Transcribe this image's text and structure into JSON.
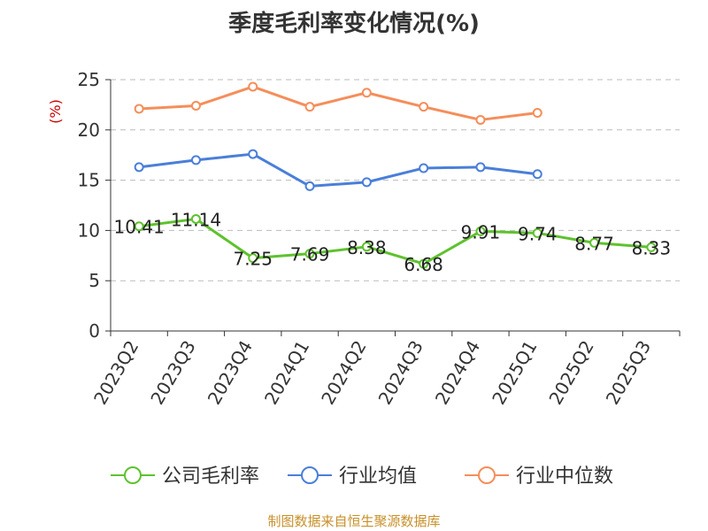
{
  "title": "季度毛利率变化情况(%)",
  "footer": "制图数据来自恒生聚源数据库",
  "colors": {
    "title": "#333333",
    "axis": "#333333",
    "grid": "#bbbbbb",
    "unit": "#cc0000",
    "footer": "#c8902a"
  },
  "chart_data": {
    "type": "line",
    "unit_label": "(%)",
    "categories": [
      "2023Q2",
      "2023Q3",
      "2023Q4",
      "2024Q1",
      "2024Q2",
      "2024Q3",
      "2024Q4",
      "2025Q1",
      "2025Q2",
      "2025Q3"
    ],
    "ylim": [
      0,
      25
    ],
    "yticks": [
      0,
      5,
      10,
      15,
      20,
      25
    ],
    "grid": true,
    "legend_position": "bottom",
    "series": [
      {
        "name": "公司毛利率",
        "color": "#5ec22e",
        "show_labels": true,
        "values": [
          10.41,
          11.14,
          7.25,
          7.69,
          8.38,
          6.68,
          9.91,
          9.74,
          8.77,
          8.33
        ]
      },
      {
        "name": "行业均值",
        "color": "#4a7fd9",
        "show_labels": false,
        "values": [
          16.3,
          17.0,
          17.6,
          14.4,
          14.8,
          16.2,
          16.3,
          15.6,
          null,
          null
        ]
      },
      {
        "name": "行业中位数",
        "color": "#f58e5a",
        "show_labels": false,
        "values": [
          22.1,
          22.4,
          24.3,
          22.3,
          23.7,
          22.3,
          21.0,
          21.7,
          null,
          null
        ]
      }
    ]
  }
}
